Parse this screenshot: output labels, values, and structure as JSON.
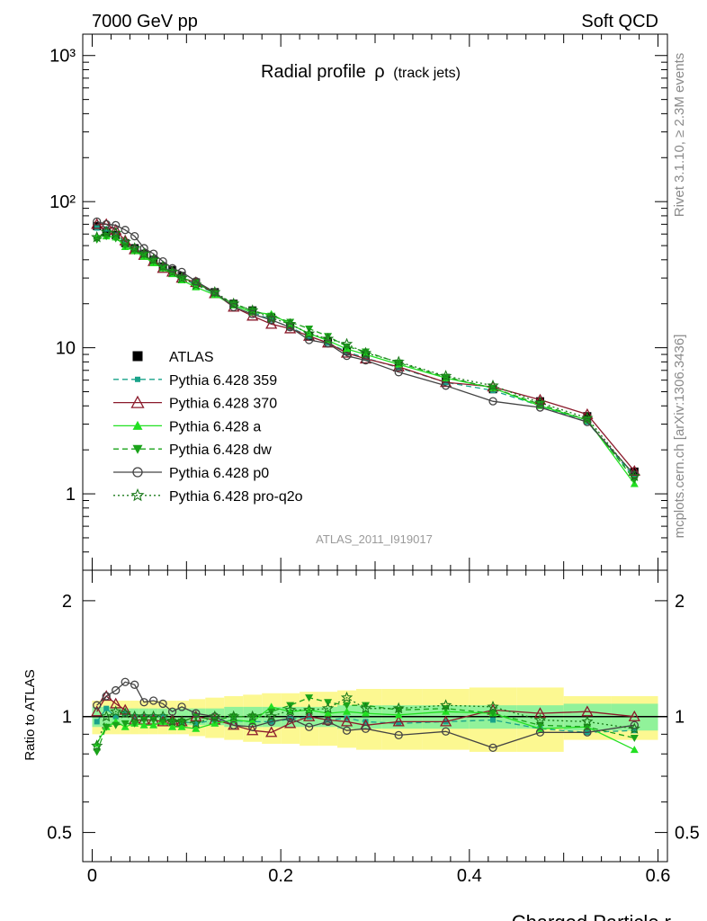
{
  "header": {
    "left": "7000 GeV pp",
    "right": "Soft QCD"
  },
  "side_labels": {
    "rivet": "Rivet 3.1.10, ≥ 2.3M events",
    "mcplots": "mcplots.cern.ch [arXiv:1306.3436]"
  },
  "chart_data": [
    {
      "type": "line",
      "panel": "main",
      "title": "Radial profile",
      "title_symbol": "ρ",
      "title_suffix": "(track jets)",
      "watermark": "ATLAS_2011_I919017",
      "xlabel": "Charged Particle r",
      "ylabel": "",
      "y_scale": "log",
      "xlim": [
        -0.01,
        0.61
      ],
      "ylim": [
        0.3,
        1400
      ],
      "y_tick_labels": [
        "1",
        "10",
        "10²",
        "10³"
      ],
      "x_tick_labels": [
        "0",
        "0.2",
        "0.4",
        "0.6"
      ],
      "legend_position": "center-left",
      "x": [
        0.005,
        0.015,
        0.025,
        0.035,
        0.045,
        0.055,
        0.065,
        0.075,
        0.085,
        0.095,
        0.11,
        0.13,
        0.15,
        0.17,
        0.19,
        0.21,
        0.23,
        0.25,
        0.27,
        0.29,
        0.325,
        0.375,
        0.425,
        0.475,
        0.525,
        0.575
      ],
      "series": [
        {
          "name": "ATLAS",
          "color": "#000000",
          "marker": "square",
          "style": "none",
          "values": [
            68,
            62,
            59,
            52,
            48,
            44,
            40,
            36,
            34,
            31,
            28,
            24,
            20,
            18,
            16,
            14,
            12,
            11,
            9.5,
            8.8,
            7.6,
            6.0,
            5.2,
            4.3,
            3.4,
            1.42
          ]
        },
        {
          "name": "Pythia 6.428 359",
          "color": "#19a38a",
          "marker": "small-square",
          "style": "dashed",
          "values": [
            66,
            65,
            59,
            53,
            48,
            44,
            40,
            36,
            33,
            30,
            27,
            23.5,
            19.5,
            17.5,
            15.5,
            13.8,
            12,
            10.8,
            9.4,
            8.5,
            7.3,
            5.8,
            5.1,
            4.0,
            3.1,
            1.3
          ]
        },
        {
          "name": "Pythia 6.428 370",
          "color": "#8b1a2b",
          "marker": "open-triangle",
          "style": "solid",
          "values": [
            70,
            70,
            64,
            54,
            47,
            43,
            39,
            35,
            33,
            30,
            28,
            23.5,
            19,
            16.5,
            14.5,
            13.5,
            12,
            10.8,
            9.2,
            8.4,
            7.4,
            5.8,
            5.4,
            4.4,
            3.5,
            1.43
          ]
        },
        {
          "name": "Pythia 6.428 a",
          "color": "#22e022",
          "marker": "filled-triangle",
          "style": "solid",
          "values": [
            58,
            58,
            57,
            49,
            46,
            42,
            38,
            35,
            32,
            29,
            26,
            23,
            19.5,
            17.5,
            17,
            14.5,
            12.5,
            11.2,
            9.8,
            9.0,
            7.7,
            6.2,
            5.3,
            4.0,
            3.2,
            1.17
          ]
        },
        {
          "name": "Pythia 6.428 dw",
          "color": "#1aa31a",
          "marker": "filled-triangle-down",
          "style": "dashed",
          "values": [
            55,
            58,
            56,
            50,
            46,
            43,
            39,
            35,
            33,
            30,
            28,
            23.5,
            20,
            18,
            16.5,
            15,
            13.5,
            12,
            10.2,
            9.4,
            7.9,
            6.3,
            5.3,
            4.1,
            3.2,
            1.25
          ]
        },
        {
          "name": "Pythia 6.428 p0",
          "color": "#444444",
          "marker": "open-circle",
          "style": "solid",
          "values": [
            73,
            70,
            69,
            64,
            58,
            48,
            44,
            39,
            35,
            33,
            28.5,
            24,
            19,
            17,
            15.5,
            13.8,
            11.3,
            10.7,
            8.8,
            8.2,
            6.8,
            5.5,
            4.3,
            3.9,
            3.1,
            1.35
          ]
        },
        {
          "name": "Pythia 6.428 pro-q2o",
          "color": "#1a7a1a",
          "marker": "open-star",
          "style": "dotted",
          "values": [
            57,
            62,
            61,
            53,
            48,
            44,
            40,
            36,
            33,
            30,
            27,
            24,
            20,
            18,
            16,
            14.5,
            12.5,
            11.5,
            10.6,
            9.2,
            8.0,
            6.4,
            5.5,
            4.2,
            3.3,
            1.32
          ]
        }
      ]
    },
    {
      "type": "line",
      "panel": "ratio",
      "xlabel": "Charged Particle r",
      "ylabel": "Ratio to ATLAS",
      "y_scale": "log",
      "ylim": [
        0.42,
        2.4
      ],
      "y_tick_labels": [
        "0.5",
        "1",
        "2"
      ],
      "x_tick_labels": [
        "0",
        "0.2",
        "0.4",
        "0.6"
      ],
      "x": [
        0.005,
        0.015,
        0.025,
        0.035,
        0.045,
        0.055,
        0.065,
        0.075,
        0.085,
        0.095,
        0.11,
        0.13,
        0.15,
        0.17,
        0.19,
        0.21,
        0.23,
        0.25,
        0.27,
        0.29,
        0.325,
        0.375,
        0.425,
        0.475,
        0.525,
        0.575
      ],
      "band_inner": [
        0.06,
        0.06,
        0.05,
        0.05,
        0.05,
        0.05,
        0.05,
        0.05,
        0.05,
        0.05,
        0.05,
        0.05,
        0.06,
        0.06,
        0.06,
        0.06,
        0.06,
        0.06,
        0.07,
        0.07,
        0.07,
        0.07,
        0.07,
        0.07,
        0.08,
        0.08
      ],
      "band_outer": [
        0.1,
        0.1,
        0.1,
        0.1,
        0.1,
        0.1,
        0.1,
        0.1,
        0.1,
        0.1,
        0.11,
        0.12,
        0.13,
        0.14,
        0.15,
        0.15,
        0.16,
        0.16,
        0.17,
        0.18,
        0.18,
        0.18,
        0.19,
        0.19,
        0.13,
        0.13
      ],
      "series": [
        {
          "name": "Pythia 6.428 359",
          "color": "#19a38a",
          "marker": "small-square",
          "style": "dashed",
          "values": [
            0.97,
            1.05,
            1.0,
            1.02,
            1.0,
            1.0,
            1.0,
            1.0,
            0.97,
            0.97,
            0.96,
            0.98,
            0.975,
            0.97,
            0.97,
            0.985,
            1.0,
            0.98,
            0.99,
            0.97,
            0.96,
            0.97,
            0.98,
            0.93,
            0.91,
            0.92
          ]
        },
        {
          "name": "Pythia 6.428 370",
          "color": "#8b1a2b",
          "marker": "open-triangle",
          "style": "solid",
          "values": [
            1.03,
            1.13,
            1.08,
            1.04,
            0.98,
            0.98,
            0.98,
            0.97,
            0.98,
            0.97,
            1.0,
            0.98,
            0.95,
            0.92,
            0.91,
            0.96,
            1.0,
            0.98,
            0.97,
            0.95,
            0.97,
            0.97,
            1.04,
            1.02,
            1.03,
            1.0
          ]
        },
        {
          "name": "Pythia 6.428 a",
          "color": "#22e022",
          "marker": "filled-triangle",
          "style": "solid",
          "values": [
            0.85,
            0.94,
            0.97,
            0.94,
            0.96,
            0.95,
            0.95,
            0.97,
            0.94,
            0.94,
            0.93,
            0.96,
            0.98,
            0.97,
            1.06,
            1.03,
            1.04,
            1.02,
            1.03,
            1.02,
            1.01,
            1.03,
            1.02,
            0.93,
            0.94,
            0.82
          ]
        },
        {
          "name": "Pythia 6.428 dw",
          "color": "#1aa31a",
          "marker": "filled-triangle-down",
          "style": "dashed",
          "values": [
            0.81,
            0.94,
            0.95,
            0.96,
            0.96,
            0.98,
            0.98,
            0.97,
            0.97,
            0.97,
            1.0,
            0.98,
            1.0,
            1.0,
            1.03,
            1.07,
            1.12,
            1.09,
            1.07,
            1.07,
            1.04,
            1.05,
            1.02,
            0.95,
            0.94,
            0.88
          ]
        },
        {
          "name": "Pythia 6.428 p0",
          "color": "#444444",
          "marker": "open-circle",
          "style": "solid",
          "values": [
            1.07,
            1.13,
            1.17,
            1.23,
            1.21,
            1.09,
            1.1,
            1.08,
            1.03,
            1.06,
            1.02,
            1.0,
            0.95,
            0.94,
            0.97,
            0.99,
            0.94,
            0.97,
            0.92,
            0.93,
            0.895,
            0.915,
            0.83,
            0.91,
            0.91,
            0.95
          ]
        },
        {
          "name": "Pythia 6.428 pro-q2o",
          "color": "#1a7a1a",
          "marker": "open-star",
          "style": "dotted",
          "values": [
            0.84,
            1.0,
            1.03,
            1.02,
            1.0,
            1.0,
            1.0,
            1.0,
            0.97,
            0.97,
            0.96,
            1.0,
            1.0,
            1.0,
            1.0,
            1.04,
            1.04,
            1.05,
            1.12,
            1.05,
            1.05,
            1.07,
            1.06,
            0.98,
            0.97,
            0.93
          ]
        }
      ]
    }
  ]
}
